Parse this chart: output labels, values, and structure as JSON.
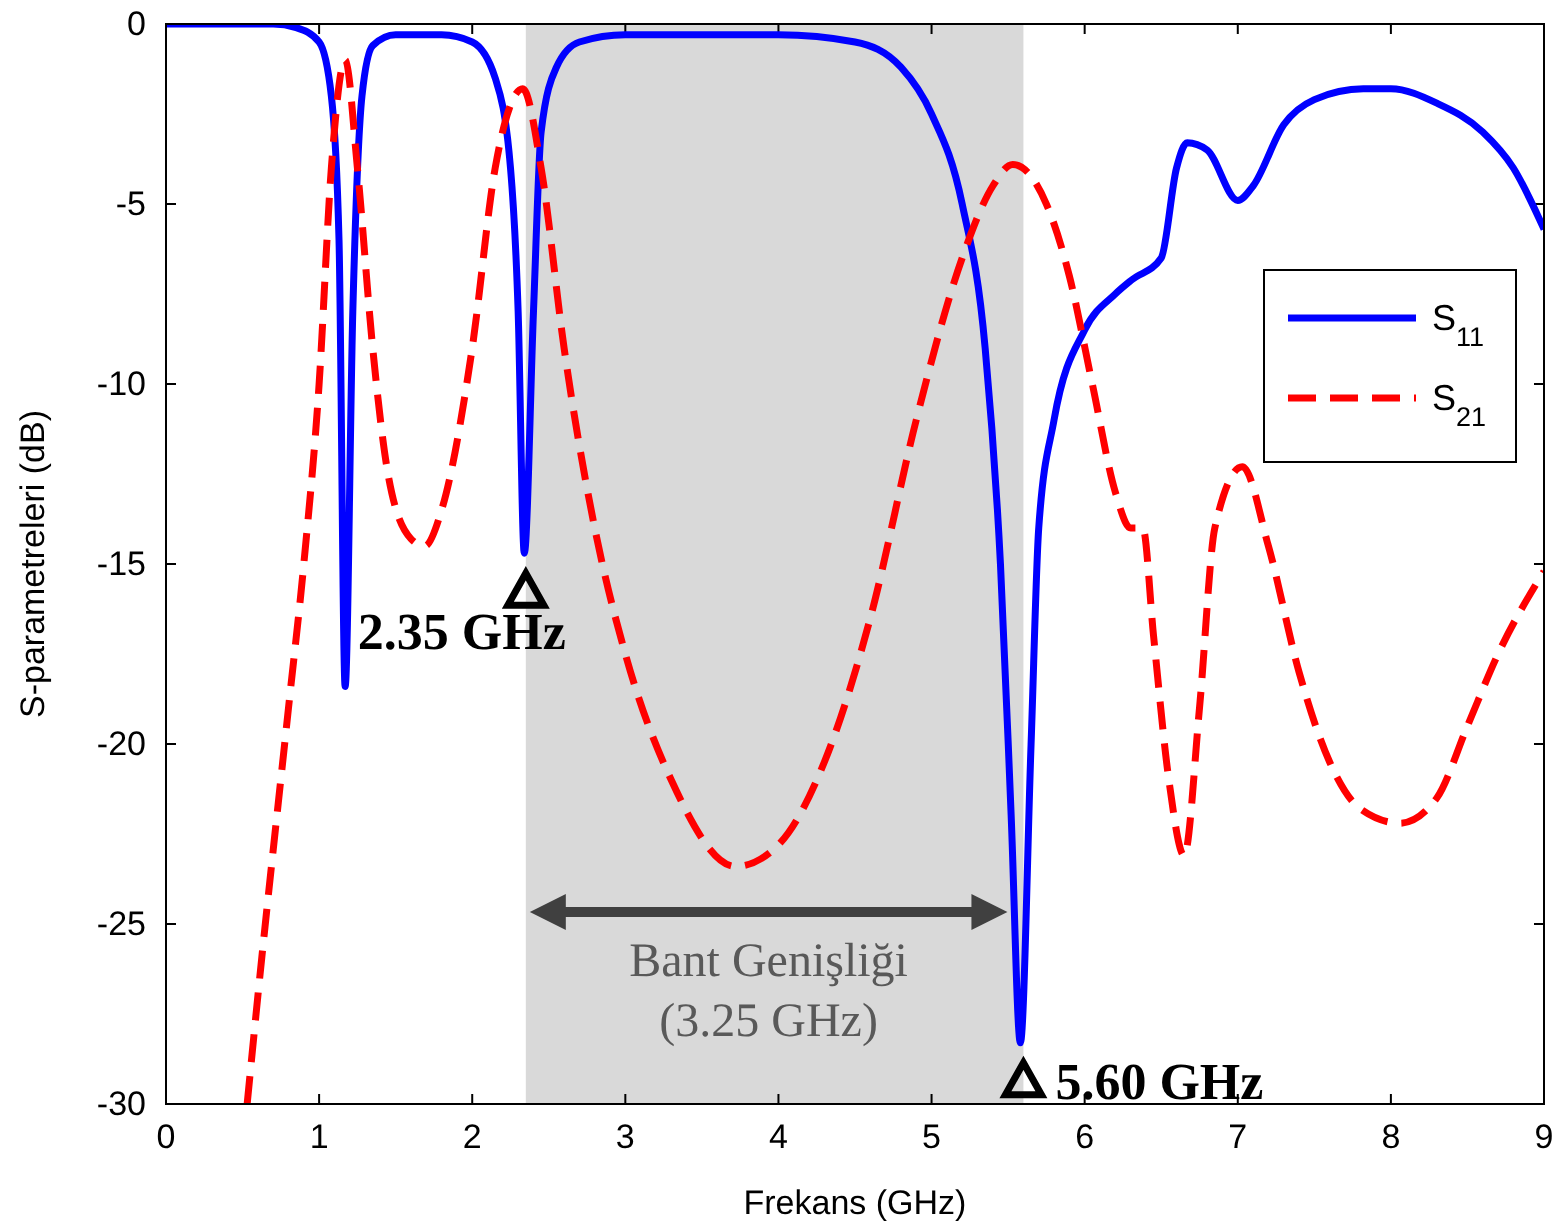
{
  "chart_data": {
    "type": "line",
    "xlabel": "Frekans (GHz)",
    "ylabel": "S-parametreleri (dB)",
    "xlim": [
      0,
      9
    ],
    "ylim": [
      -30,
      0
    ],
    "xticks": [
      0,
      1,
      2,
      3,
      4,
      5,
      6,
      7,
      8,
      9
    ],
    "yticks": [
      0,
      -5,
      -10,
      -15,
      -20,
      -25,
      -30
    ],
    "grid": false,
    "legend": "right",
    "marker": "none",
    "series": [
      {
        "name": "S$_{11}$",
        "color": "#0000ff",
        "line_style": "solid",
        "x": [
          0,
          0.7,
          0.85,
          1.0,
          1.08,
          1.13,
          1.17,
          1.22,
          1.28,
          1.35,
          1.5,
          1.8,
          2.0,
          2.15,
          2.25,
          2.3,
          2.34,
          2.4,
          2.45,
          2.55,
          2.7,
          3.0,
          4.0,
          4.5,
          4.8,
          5.0,
          5.2,
          5.35,
          5.45,
          5.52,
          5.58,
          5.65,
          5.7,
          5.8,
          6.0,
          6.2,
          6.31,
          6.5,
          6.6,
          6.67,
          6.8,
          7.0,
          7.1,
          7.3,
          7.5,
          7.82,
          8.0,
          8.3,
          8.6,
          8.8,
          9.0
        ],
        "values": [
          0,
          0,
          -0.1,
          -0.5,
          -2,
          -6,
          -18.4,
          -8,
          -2,
          -0.6,
          -0.3,
          -0.3,
          -0.5,
          -1.5,
          -4,
          -8,
          -14.7,
          -8,
          -3,
          -1.2,
          -0.5,
          -0.3,
          -0.3,
          -0.5,
          -1.2,
          -2.5,
          -5,
          -9,
          -15,
          -22,
          -28.3,
          -20,
          -14,
          -11,
          -8.5,
          -7.5,
          -7.1,
          -6.5,
          -4,
          -3.3,
          -3.5,
          -4.9,
          -4.5,
          -2.8,
          -2.1,
          -1.8,
          -1.8,
          -2.2,
          -3,
          -4,
          -5.7
        ]
      },
      {
        "name": "S$_{21}$",
        "color": "#ff0000",
        "line_style": "dashed",
        "x": [
          0.53,
          0.6,
          0.8,
          0.9,
          1.0,
          1.08,
          1.17,
          1.25,
          1.35,
          1.45,
          1.6,
          1.69,
          1.8,
          2.0,
          2.15,
          2.33,
          2.45,
          2.6,
          2.8,
          3.0,
          3.3,
          3.72,
          4.0,
          4.3,
          4.6,
          4.9,
          5.2,
          5.4,
          5.53,
          5.75,
          5.9,
          6.05,
          6.2,
          6.3,
          6.38,
          6.45,
          6.55,
          6.65,
          6.75,
          6.85,
          7.03,
          7.2,
          7.4,
          7.6,
          7.8,
          8.06,
          8.3,
          8.5,
          8.7,
          9.0
        ],
        "values": [
          -30,
          -27,
          -19,
          -15,
          -10,
          -4,
          -1,
          -4,
          -9,
          -12.5,
          -14.3,
          -14.5,
          -13.5,
          -9,
          -4,
          -1.8,
          -4,
          -9,
          -14,
          -17.5,
          -21,
          -23.4,
          -22.8,
          -20.5,
          -16.5,
          -11,
          -6.5,
          -4.5,
          -3.9,
          -5,
          -7,
          -10,
          -13,
          -14,
          -14,
          -17,
          -21,
          -23.1,
          -19,
          -14,
          -12.3,
          -14.5,
          -18,
          -20.5,
          -21.8,
          -22.2,
          -21.5,
          -19.5,
          -17.5,
          -15.2
        ]
      }
    ],
    "bands": [
      {
        "axis": "x",
        "from": 2.35,
        "to": 5.6,
        "label": "Bant Genişliği\n(3.25 GHz)",
        "color": "#d9d9d9"
      }
    ],
    "annotations": [
      {
        "text": "2.35 GHz",
        "x": 2.35,
        "y": -14.7
      },
      {
        "text": "5.60 GHz",
        "x": 5.6,
        "y": -28.3
      }
    ]
  }
}
